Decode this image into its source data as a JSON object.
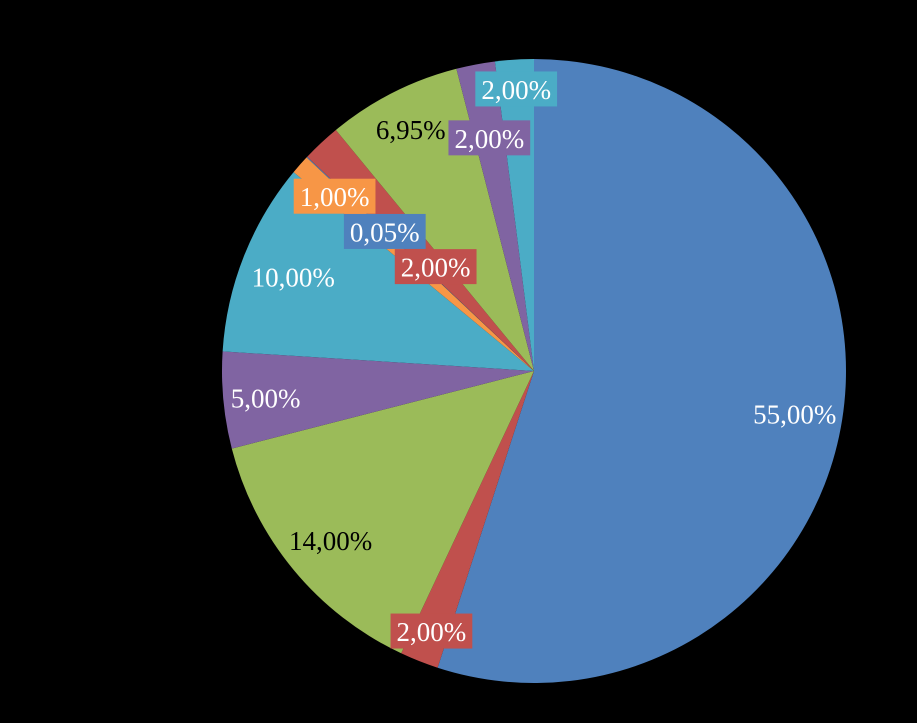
{
  "chart_data": {
    "type": "pie",
    "title": "",
    "background": "#000000",
    "direction": "clockwise",
    "start_angle_deg": 0,
    "slices": [
      {
        "name": "blue-55",
        "value": 55.0,
        "label": "55,00%",
        "color": "#4F81BD",
        "text_color": "#FFFFFF",
        "boxed": false,
        "label_r": 0.846
      },
      {
        "name": "red-2-bottom",
        "value": 2.0,
        "label": "2,00%",
        "color": "#C0504D",
        "text_color": "#FFFFFF",
        "boxed": true,
        "label_r": 0.893
      },
      {
        "name": "green-14",
        "value": 14.0,
        "label": "14,00%",
        "color": "#9BBB59",
        "text_color": "#000000",
        "boxed": false,
        "label_r": 0.846
      },
      {
        "name": "purple-5",
        "value": 5.0,
        "label": "5,00%",
        "color": "#8064A2",
        "text_color": "#FFFFFF",
        "boxed": false,
        "label_r": 0.864
      },
      {
        "name": "teal-10",
        "value": 10.0,
        "label": "10,00%",
        "color": "#4BACC6",
        "text_color": "#FFFFFF",
        "boxed": false,
        "label_r": 0.83
      },
      {
        "name": "orange-1",
        "value": 1.0,
        "label": "1,00%",
        "color": "#F79646",
        "text_color": "#FFFFFF",
        "boxed": true,
        "label_r": 0.852
      },
      {
        "name": "blue-005",
        "value": 0.05,
        "label": "0,05%",
        "color": "#4F81BD",
        "text_color": "#FFFFFF",
        "boxed": true,
        "label_r": 0.657
      },
      {
        "name": "red-2-mid",
        "value": 2.0,
        "label": "2,00%",
        "color": "#C0504D",
        "text_color": "#FFFFFF",
        "boxed": true,
        "label_r": 0.462
      },
      {
        "name": "green-695",
        "value": 6.95,
        "label": "6,95%",
        "color": "#9BBB59",
        "text_color": "#000000",
        "boxed": false,
        "label_r": 0.873
      },
      {
        "name": "purple-2",
        "value": 2.0,
        "label": "2,00%",
        "color": "#8064A2",
        "text_color": "#FFFFFF",
        "boxed": true,
        "label_r": 0.764
      },
      {
        "name": "cyan-2",
        "value": 2.0,
        "label": "2,00%",
        "color": "#4BACC6",
        "text_color": "#FFFFFF",
        "boxed": true,
        "label_r": 0.909
      }
    ]
  }
}
